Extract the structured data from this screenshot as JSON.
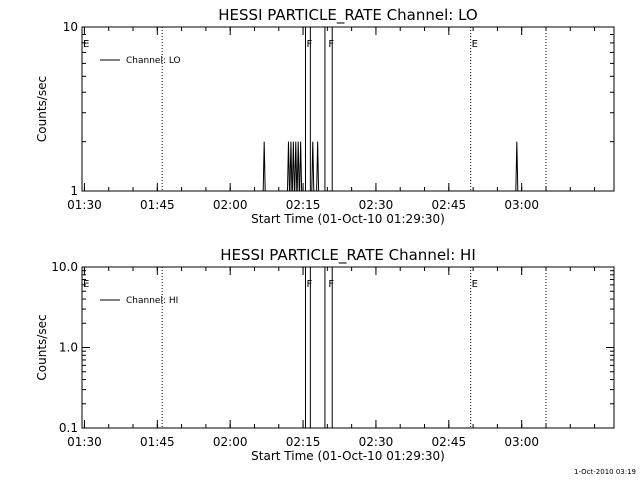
{
  "chart_data": [
    {
      "type": "line",
      "title": "HESSI PARTICLE_RATE Channel: LO",
      "xlabel": "Start Time (01-Oct-10 01:29:30)",
      "ylabel": "Counts/sec",
      "yscale": "log",
      "ylim": [
        1,
        10
      ],
      "xlim": [
        "01:29:30",
        "03:19:00"
      ],
      "x_ticks": [
        "01:30",
        "01:45",
        "02:00",
        "02:15",
        "02:30",
        "02:45",
        "03:00"
      ],
      "y_ticks": [
        {
          "value": 1,
          "label": "1"
        },
        {
          "value": 10,
          "label": "10"
        }
      ],
      "legend": {
        "label": "Channel: LO",
        "placement": "top-left"
      },
      "grid": false,
      "event_markers": [
        {
          "time": "01:29:30",
          "label": "E",
          "dotted": false
        },
        {
          "time": "01:46:00",
          "label": "",
          "dotted": true
        },
        {
          "time": "02:15:30",
          "label": "F",
          "dotted": false
        },
        {
          "time": "02:20:00",
          "label": "F",
          "dotted": false
        },
        {
          "time": "02:49:30",
          "label": "E",
          "dotted": true
        },
        {
          "time": "03:05:00",
          "label": "",
          "dotted": true
        }
      ],
      "series": [
        {
          "spikes": [
            {
              "time": "02:07:00",
              "value": 2
            },
            {
              "time": "02:12:00",
              "value": 2
            },
            {
              "time": "02:12:30",
              "value": 2
            },
            {
              "time": "02:13:00",
              "value": 2
            },
            {
              "time": "02:13:30",
              "value": 2
            },
            {
              "time": "02:14:00",
              "value": 2
            },
            {
              "time": "02:14:30",
              "value": 2
            },
            {
              "time": "02:17:00",
              "value": 2
            },
            {
              "time": "02:18:00",
              "value": 2
            },
            {
              "time": "02:59:00",
              "value": 2
            }
          ],
          "saturated_ranges": [
            {
              "start": "02:15:30",
              "end": "02:16:30"
            },
            {
              "start": "02:19:30",
              "end": "02:21:00"
            }
          ]
        }
      ]
    },
    {
      "type": "line",
      "title": "HESSI PARTICLE_RATE Channel: HI",
      "xlabel": "Start Time (01-Oct-10 01:29:30)",
      "ylabel": "Counts/sec",
      "yscale": "log",
      "ylim": [
        0.1,
        10
      ],
      "xlim": [
        "01:29:30",
        "03:19:00"
      ],
      "x_ticks": [
        "01:30",
        "01:45",
        "02:00",
        "02:15",
        "02:30",
        "02:45",
        "03:00"
      ],
      "y_ticks": [
        {
          "value": 0.1,
          "label": "0.1"
        },
        {
          "value": 1,
          "label": "1.0"
        },
        {
          "value": 10,
          "label": "10.0"
        }
      ],
      "legend": {
        "label": "Channel: HI",
        "placement": "top-left"
      },
      "grid": false,
      "event_markers": [
        {
          "time": "01:29:30",
          "label": "E",
          "dotted": false
        },
        {
          "time": "01:46:00",
          "label": "",
          "dotted": true
        },
        {
          "time": "02:15:30",
          "label": "F",
          "dotted": false
        },
        {
          "time": "02:20:00",
          "label": "F",
          "dotted": false
        },
        {
          "time": "02:49:30",
          "label": "E",
          "dotted": true
        },
        {
          "time": "03:05:00",
          "label": "",
          "dotted": true
        }
      ],
      "series": [
        {
          "spikes": [],
          "saturated_ranges": [
            {
              "start": "02:15:30",
              "end": "02:16:30"
            },
            {
              "start": "02:19:30",
              "end": "02:21:00"
            }
          ]
        }
      ]
    }
  ],
  "footer": "1-Oct-2010 03:19"
}
